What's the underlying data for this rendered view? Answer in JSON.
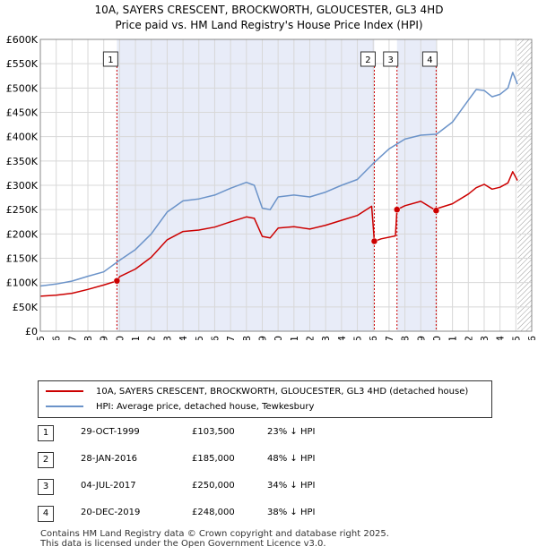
{
  "title": {
    "line1": "10A, SAYERS CRESCENT, BROCKWORTH, GLOUCESTER, GL3 4HD",
    "line2": "Price paid vs. HM Land Registry's House Price Index (HPI)"
  },
  "legend": {
    "property_label": "10A, SAYERS CRESCENT, BROCKWORTH, GLOUCESTER, GL3 4HD (detached house)",
    "hpi_label": "HPI: Average price, detached house, Tewkesbury"
  },
  "colors": {
    "property": "#cc0000",
    "hpi": "#6b93c9",
    "shade": "#e8ecf8",
    "grid": "#d8d8d8",
    "vline": "#cc0000"
  },
  "sales": [
    {
      "num": "1",
      "date": "29-OCT-1999",
      "price": "£103,500",
      "hpi_diff": "23% ↓ HPI"
    },
    {
      "num": "2",
      "date": "28-JAN-2016",
      "price": "£185,000",
      "hpi_diff": "48% ↓ HPI"
    },
    {
      "num": "3",
      "date": "04-JUL-2017",
      "price": "£250,000",
      "hpi_diff": "34% ↓ HPI"
    },
    {
      "num": "4",
      "date": "20-DEC-2019",
      "price": "£248,000",
      "hpi_diff": "38% ↓ HPI"
    }
  ],
  "footer": {
    "line1": "Contains HM Land Registry data © Crown copyright and database right 2025.",
    "line2": "This data is licensed under the Open Government Licence v3.0."
  },
  "chart_data": {
    "type": "line",
    "title": "Price paid vs. HM Land Registry's House Price Index (HPI)",
    "xlim": [
      1995,
      2026
    ],
    "ylim": [
      0,
      600000
    ],
    "x_ticks": [
      1995,
      1996,
      1997,
      1998,
      1999,
      2000,
      2001,
      2002,
      2003,
      2004,
      2005,
      2006,
      2007,
      2008,
      2009,
      2010,
      2011,
      2012,
      2013,
      2014,
      2015,
      2016,
      2017,
      2018,
      2019,
      2020,
      2021,
      2022,
      2023,
      2024,
      2025,
      2026
    ],
    "y_ticks": [
      {
        "value": 0,
        "label": "£0"
      },
      {
        "value": 50000,
        "label": "£50K"
      },
      {
        "value": 100000,
        "label": "£100K"
      },
      {
        "value": 150000,
        "label": "£150K"
      },
      {
        "value": 200000,
        "label": "£200K"
      },
      {
        "value": 250000,
        "label": "£250K"
      },
      {
        "value": 300000,
        "label": "£300K"
      },
      {
        "value": 350000,
        "label": "£350K"
      },
      {
        "value": 400000,
        "label": "£400K"
      },
      {
        "value": 450000,
        "label": "£450K"
      },
      {
        "value": 500000,
        "label": "£500K"
      },
      {
        "value": 550000,
        "label": "£550K"
      },
      {
        "value": 600000,
        "label": "£600K"
      }
    ],
    "shaded_ranges": [
      [
        1999.83,
        2016.07
      ],
      [
        2017.5,
        2019.97
      ]
    ],
    "hatched_from": 2025.1,
    "sale_markers": [
      {
        "num": "1",
        "x": 1999.83,
        "y": 103500
      },
      {
        "num": "2",
        "x": 2016.07,
        "y": 185000
      },
      {
        "num": "3",
        "x": 2017.5,
        "y": 250000
      },
      {
        "num": "4",
        "x": 2019.97,
        "y": 248000
      }
    ],
    "series": [
      {
        "name": "10A, SAYERS CRESCENT, BROCKWORTH, GLOUCESTER, GL3 4HD (detached house)",
        "color": "#cc0000",
        "x": [
          1995,
          1996,
          1997,
          1998,
          1999,
          1999.83,
          2000,
          2001,
          2002,
          2003,
          2004,
          2005,
          2006,
          2007,
          2008,
          2008.5,
          2009,
          2009.5,
          2010,
          2011,
          2012,
          2013,
          2014,
          2015,
          2015.9,
          2016.07,
          2016.5,
          2017.4,
          2017.5,
          2018,
          2019,
          2019.97,
          2020,
          2021,
          2022,
          2022.5,
          2023,
          2023.5,
          2024,
          2024.5,
          2024.8,
          2025.1
        ],
        "values": [
          72000,
          74000,
          78000,
          86000,
          95000,
          103500,
          112000,
          128000,
          152000,
          188000,
          205000,
          208000,
          214000,
          225000,
          235000,
          232000,
          195000,
          192000,
          212000,
          215000,
          210000,
          218000,
          228000,
          238000,
          257000,
          185000,
          190000,
          196000,
          250000,
          258000,
          267000,
          248000,
          252000,
          262000,
          282000,
          295000,
          302000,
          292000,
          296000,
          305000,
          328000,
          310000
        ]
      },
      {
        "name": "HPI: Average price, detached house, Tewkesbury",
        "color": "#6b93c9",
        "x": [
          1995,
          1996,
          1997,
          1998,
          1999,
          2000,
          2001,
          2002,
          2003,
          2004,
          2005,
          2006,
          2007,
          2008,
          2008.5,
          2009,
          2009.5,
          2010,
          2011,
          2012,
          2013,
          2014,
          2015,
          2016,
          2017,
          2018,
          2019,
          2020,
          2021,
          2022,
          2022.5,
          2023,
          2023.5,
          2024,
          2024.5,
          2024.8,
          2025.1
        ],
        "values": [
          93000,
          97000,
          103000,
          113000,
          122000,
          146000,
          168000,
          200000,
          245000,
          268000,
          272000,
          280000,
          294000,
          306000,
          300000,
          253000,
          250000,
          276000,
          280000,
          276000,
          286000,
          300000,
          312000,
          345000,
          375000,
          395000,
          403000,
          405000,
          430000,
          475000,
          497000,
          495000,
          482000,
          487000,
          500000,
          532000,
          508000
        ]
      }
    ]
  }
}
